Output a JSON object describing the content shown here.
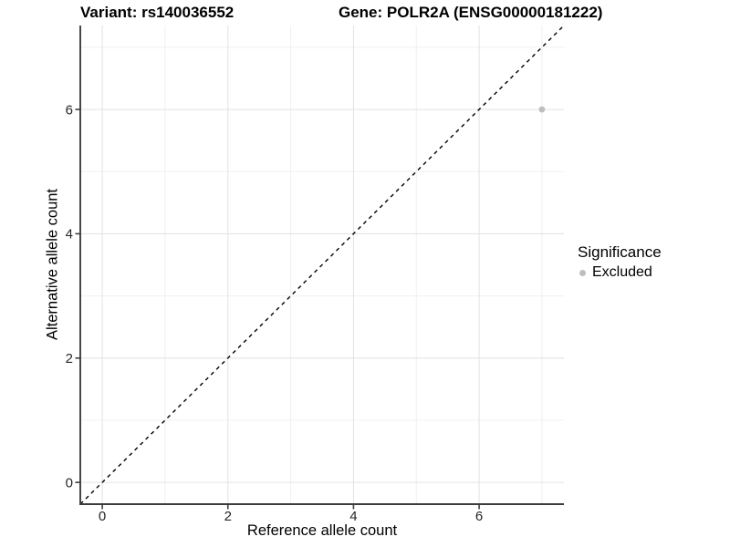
{
  "chart_data": {
    "type": "scatter",
    "titles": {
      "variant": "Variant: rs140036552",
      "gene": "Gene: POLR2A (ENSG00000181222)"
    },
    "xlabel": "Reference allele count",
    "ylabel": "Alternative allele count",
    "xlim": [
      -0.35,
      7.35
    ],
    "ylim": [
      -0.35,
      7.35
    ],
    "xticks": [
      0,
      2,
      4,
      6
    ],
    "yticks": [
      0,
      2,
      4,
      6
    ],
    "minor_ticks_x": [
      1,
      3,
      5,
      7
    ],
    "minor_ticks_y": [
      1,
      3,
      5,
      7
    ],
    "grid": true,
    "identity_line": {
      "equation": "y = x",
      "style": "dashed",
      "color": "#000000"
    },
    "points": [
      {
        "x": 7,
        "y": 6,
        "significance": "Excluded",
        "color": "#bebebe"
      }
    ],
    "legend": {
      "title": "Significance",
      "position": "right",
      "entries": [
        {
          "label": "Excluded",
          "marker": "circle",
          "color": "#bebebe"
        }
      ]
    },
    "colors": {
      "axis_line": "#3d3d3d",
      "grid_major": "#e4e4e4",
      "grid_minor": "#f0f0f0",
      "tick_label": "#262626",
      "background": "#ffffff"
    }
  }
}
